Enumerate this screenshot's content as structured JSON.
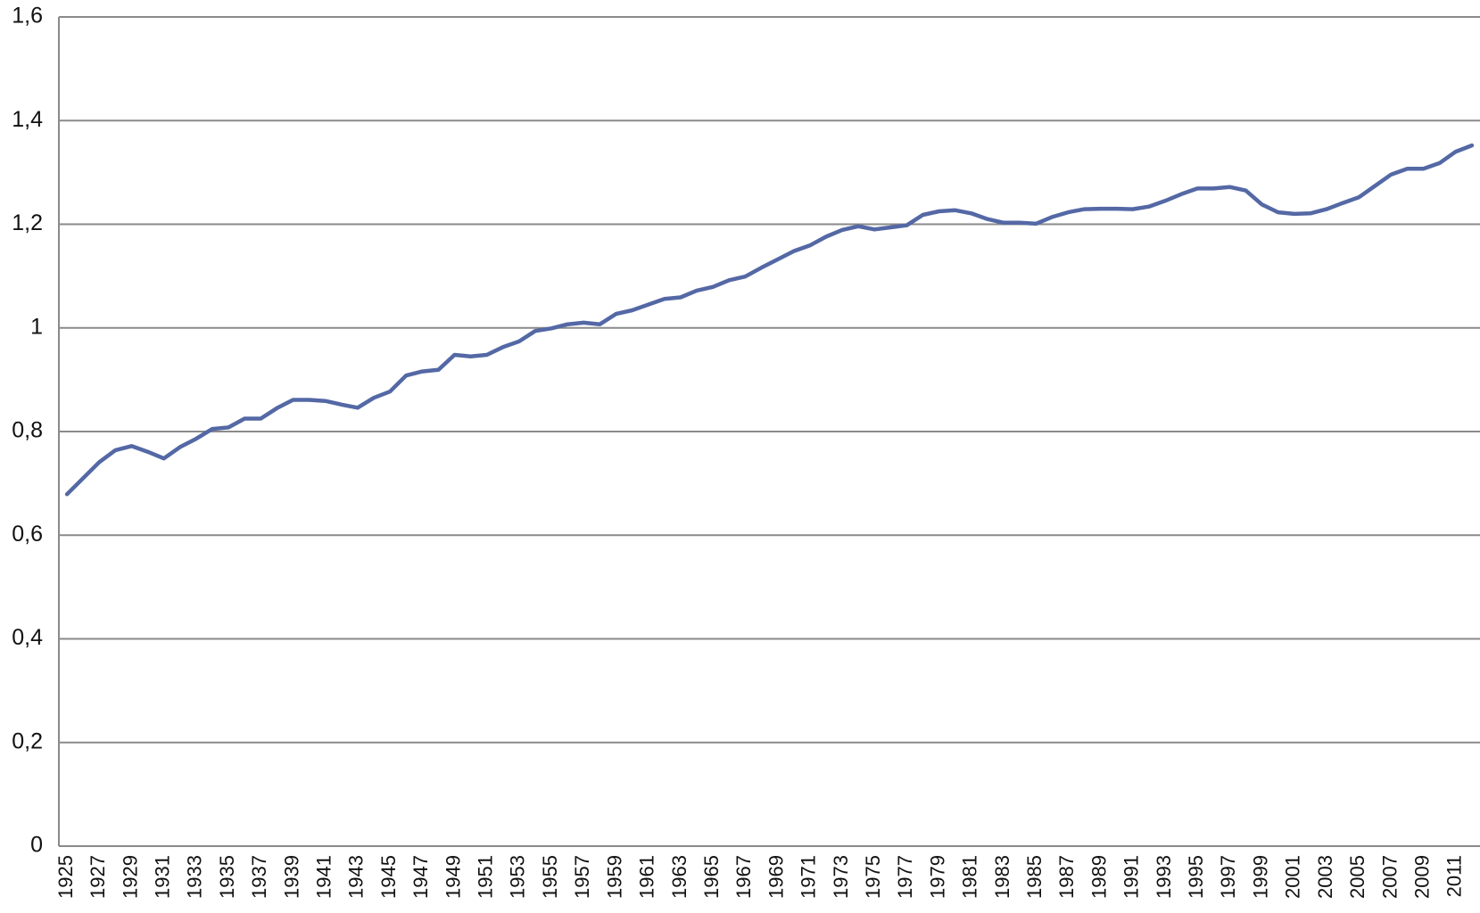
{
  "chart_data": {
    "type": "line",
    "categories": [
      "1925",
      null,
      "1927",
      null,
      "1929",
      null,
      "1931",
      null,
      "1933",
      null,
      "1935",
      null,
      "1937",
      null,
      "1939",
      null,
      "1941",
      null,
      "1943",
      null,
      "1945",
      null,
      "1947",
      null,
      "1949",
      null,
      "1951",
      null,
      "1953",
      null,
      "1955",
      null,
      "1957",
      null,
      "1959",
      null,
      "1961",
      null,
      "1963",
      null,
      "1965",
      null,
      "1967",
      null,
      "1969",
      null,
      "1971",
      null,
      "1973",
      null,
      "1975",
      null,
      "1977",
      null,
      "1979",
      null,
      "1981",
      null,
      "1983",
      null,
      "1985",
      null,
      "1987",
      null,
      "1989",
      null,
      "1991",
      null,
      "1993",
      null,
      "1995",
      null,
      "1997",
      null,
      "1999",
      null,
      "2001",
      null,
      "2003",
      null,
      "2005",
      null,
      "2007",
      null,
      "2009",
      null,
      "2011",
      null
    ],
    "values": [
      0.679,
      0.71,
      0.741,
      0.764,
      0.772,
      0.761,
      0.748,
      0.77,
      0.786,
      0.805,
      0.808,
      0.825,
      0.825,
      0.845,
      0.861,
      0.861,
      0.859,
      0.852,
      0.846,
      0.865,
      0.877,
      0.908,
      0.916,
      0.919,
      0.948,
      0.945,
      0.948,
      0.963,
      0.974,
      0.994,
      0.999,
      1.007,
      1.01,
      1.007,
      1.027,
      1.034,
      1.045,
      1.056,
      1.059,
      1.072,
      1.079,
      1.092,
      1.099,
      1.116,
      1.132,
      1.148,
      1.159,
      1.176,
      1.189,
      1.196,
      1.19,
      1.194,
      1.198,
      1.218,
      1.225,
      1.227,
      1.221,
      1.21,
      1.203,
      1.203,
      1.201,
      1.214,
      1.223,
      1.229,
      1.23,
      1.23,
      1.229,
      1.234,
      1.245,
      1.258,
      1.269,
      1.269,
      1.272,
      1.265,
      1.238,
      1.223,
      1.22,
      1.221,
      1.229,
      1.241,
      1.252,
      1.274,
      1.296,
      1.307,
      1.307,
      1.318,
      1.34,
      1.352
    ],
    "color": "#5468a5",
    "ylim": [
      0,
      1.6
    ],
    "yticks": [
      0,
      {
        "value": 0.2,
        "label": "0,2"
      },
      {
        "value": 0.4,
        "label": "0,4"
      },
      {
        "value": 0.6,
        "label": "0,6"
      },
      {
        "value": 0.8,
        "label": "0,8"
      },
      1,
      {
        "value": 1.2,
        "label": "1,2"
      },
      {
        "value": 1.4,
        "label": "1,4"
      },
      {
        "value": 1.6,
        "label": "1,6"
      }
    ],
    "grid": true
  }
}
